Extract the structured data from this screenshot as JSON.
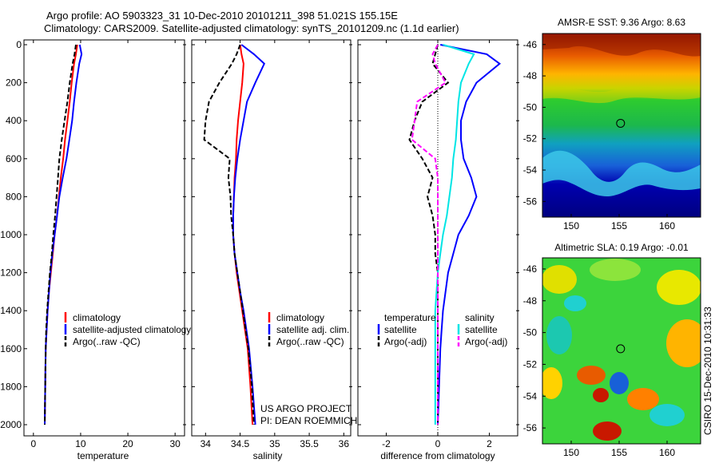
{
  "header": {
    "title_line1": "Argo profile: AO 5903323_31 10-Dec-2010 20101211_398 51.021S 155.15E",
    "title_line2": "Climatology: CARS2009. Satellite-adjusted climatology: synTS_20101209.nc (1.1d earlier)"
  },
  "watermark": "CSIRO 15-Dec-2010 10:31:33",
  "colors": {
    "climatology": "#ff0000",
    "satellite": "#0000ff",
    "argo": "#000000",
    "salinity_sat": "#00e5e5",
    "salinity_argo": "#ff00ff"
  },
  "panels": {
    "temperature": {
      "xlabel": "temperature",
      "xticks": [
        "0",
        "10",
        "20",
        "30"
      ],
      "legend": [
        "climatology",
        "satellite-adjusted climatology",
        "Argo(..raw -QC)"
      ]
    },
    "salinity": {
      "xlabel": "salinity",
      "xticks": [
        "34",
        "34.5",
        "35",
        "35.5",
        "36"
      ],
      "legend": [
        "climatology",
        "satellite adj. clim.",
        "Argo(..raw -QC)"
      ],
      "credit1": "US ARGO PROJECT",
      "credit2": "PI: DEAN ROEMMICH"
    },
    "difference": {
      "xlabel": "difference from climatology",
      "xticks": [
        "-2",
        "0",
        "2"
      ],
      "legend_t_title": "temperature",
      "legend_t": [
        "satellite",
        "Argo(-adj)"
      ],
      "legend_s_title": "salinity",
      "legend_s": [
        "satellite",
        "Argo(-adj)"
      ]
    },
    "depth_ticks": [
      "0",
      "200",
      "400",
      "600",
      "800",
      "1000",
      "1200",
      "1400",
      "1600",
      "1800",
      "2000"
    ]
  },
  "maps": {
    "sst": {
      "title": "AMSR-E SST: 9.36 Argo: 8.63",
      "yticks": [
        "-46",
        "-48",
        "-50",
        "-52",
        "-54",
        "-56"
      ],
      "xticks": [
        "150",
        "155",
        "160"
      ],
      "float_lon": 155.15,
      "float_lat": -51.02
    },
    "sla": {
      "title": "Altimetric SLA: 0.19 Argo: -0.01",
      "yticks": [
        "-46",
        "-48",
        "-50",
        "-52",
        "-54",
        "-56"
      ],
      "xticks": [
        "150",
        "155",
        "160"
      ],
      "float_lon": 155.15,
      "float_lat": -51.02
    }
  },
  "chart_data": [
    {
      "type": "line",
      "name": "temperature_profile",
      "xlabel": "temperature",
      "ylim": [
        2050,
        0
      ],
      "xlim": [
        -2,
        32
      ],
      "series": [
        {
          "name": "climatology",
          "x": [
            9.3,
            9.0,
            8.6,
            8.1,
            7.7,
            7.2,
            6.7,
            6.3,
            5.8,
            5.4,
            5.0,
            4.5,
            4.1,
            3.7,
            3.3,
            3.0,
            2.8,
            2.6,
            2.5,
            2.4
          ],
          "y": [
            0,
            50,
            100,
            200,
            300,
            400,
            500,
            600,
            700,
            800,
            900,
            1000,
            1100,
            1200,
            1300,
            1400,
            1500,
            1600,
            1800,
            2000
          ]
        },
        {
          "name": "satellite-adjusted climatology",
          "x": [
            9.8,
            10.2,
            9.7,
            9.1,
            8.6,
            8.2,
            7.6,
            7.0,
            6.2,
            5.5,
            5.0,
            4.5,
            4.0,
            3.6,
            3.3,
            3.0,
            2.8,
            2.6,
            2.5,
            2.4
          ],
          "y": [
            0,
            50,
            100,
            200,
            300,
            400,
            500,
            600,
            700,
            800,
            900,
            1000,
            1100,
            1200,
            1300,
            1400,
            1500,
            1600,
            1800,
            2000
          ]
        },
        {
          "name": "Argo(..raw -QC)",
          "x": [
            9.0,
            8.7,
            8.3,
            7.7,
            7.2,
            6.6,
            6.0,
            5.5,
            5.2,
            4.9,
            4.6,
            4.2,
            3.9,
            3.5,
            3.2,
            2.9,
            2.7,
            2.6,
            2.5,
            2.4
          ],
          "y": [
            0,
            50,
            100,
            200,
            300,
            400,
            500,
            600,
            700,
            800,
            900,
            1000,
            1100,
            1200,
            1300,
            1400,
            1500,
            1600,
            1800,
            2000
          ]
        }
      ]
    },
    {
      "type": "line",
      "name": "salinity_profile",
      "xlabel": "salinity",
      "ylim": [
        2050,
        0
      ],
      "xlim": [
        33.8,
        36.1
      ],
      "series": [
        {
          "name": "climatology",
          "x": [
            34.5,
            34.52,
            34.55,
            34.53,
            34.5,
            34.47,
            34.45,
            34.44,
            34.42,
            34.41,
            34.4,
            34.4,
            34.42,
            34.45,
            34.49,
            34.53,
            34.57,
            34.61,
            34.65,
            34.68
          ],
          "y": [
            0,
            50,
            100,
            200,
            300,
            400,
            500,
            600,
            700,
            800,
            900,
            1000,
            1100,
            1200,
            1300,
            1400,
            1500,
            1600,
            1800,
            2000
          ]
        },
        {
          "name": "satellite adj. clim.",
          "x": [
            34.52,
            34.7,
            34.85,
            34.72,
            34.6,
            34.55,
            34.5,
            34.46,
            34.43,
            34.41,
            34.4,
            34.4,
            34.42,
            34.46,
            34.5,
            34.55,
            34.59,
            34.63,
            34.68,
            34.72
          ],
          "y": [
            0,
            50,
            100,
            200,
            300,
            400,
            500,
            600,
            700,
            800,
            900,
            1000,
            1100,
            1200,
            1300,
            1400,
            1500,
            1600,
            1800,
            2000
          ]
        },
        {
          "name": "Argo(..raw -QC)",
          "x": [
            34.5,
            34.45,
            34.38,
            34.2,
            34.05,
            34.0,
            33.98,
            34.35,
            34.33,
            34.36,
            34.37,
            34.4,
            34.42,
            34.46,
            34.5,
            34.54,
            34.58,
            34.62,
            34.67,
            34.7
          ],
          "y": [
            0,
            50,
            100,
            200,
            300,
            400,
            500,
            600,
            700,
            800,
            900,
            1000,
            1100,
            1200,
            1300,
            1400,
            1500,
            1600,
            1800,
            2000
          ]
        }
      ]
    },
    {
      "type": "line",
      "name": "difference_profile",
      "xlabel": "difference from climatology",
      "ylim": [
        2050,
        0
      ],
      "xlim": [
        -3.1,
        3.1
      ],
      "series": [
        {
          "name": "temperature satellite",
          "x": [
            0.1,
            1.9,
            2.4,
            1.5,
            1.1,
            0.9,
            0.9,
            1.0,
            1.3,
            1.5,
            1.2,
            0.8,
            0.6,
            0.4,
            0.3,
            0.2,
            0.15,
            0.1,
            0.05,
            0.0
          ],
          "y": [
            0,
            50,
            100,
            200,
            300,
            400,
            500,
            600,
            700,
            800,
            900,
            1000,
            1100,
            1200,
            1300,
            1400,
            1500,
            1600,
            1800,
            2000
          ]
        },
        {
          "name": "temperature Argo(-adj)",
          "x": [
            0.0,
            -0.1,
            -0.2,
            0.4,
            -0.6,
            -0.9,
            -1.1,
            -0.6,
            -0.2,
            -0.4,
            -0.2,
            -0.1,
            -0.1,
            0.0,
            0.0,
            0.0,
            0.0,
            0.0,
            0.0,
            0.0
          ],
          "y": [
            0,
            50,
            100,
            200,
            300,
            400,
            500,
            600,
            700,
            800,
            900,
            1000,
            1100,
            1200,
            1300,
            1400,
            1500,
            1600,
            1800,
            2000
          ]
        },
        {
          "name": "salinity satellite",
          "x": [
            0.2,
            1.4,
            1.2,
            0.9,
            0.8,
            0.75,
            0.7,
            0.6,
            0.55,
            0.45,
            0.35,
            0.2,
            0.1,
            0.0,
            -0.05,
            -0.1,
            -0.1,
            -0.1,
            -0.1,
            -0.1
          ],
          "y": [
            0,
            50,
            100,
            200,
            300,
            400,
            500,
            600,
            700,
            800,
            900,
            1000,
            1100,
            1200,
            1300,
            1400,
            1500,
            1600,
            1800,
            2000
          ]
        },
        {
          "name": "salinity Argo(-adj)",
          "x": [
            0.0,
            -0.2,
            -0.1,
            0.3,
            -0.8,
            -0.9,
            -1.0,
            -0.1,
            0.0,
            0.0,
            0.0,
            0.0,
            0.0,
            0.0,
            0.0,
            0.0,
            0.0,
            0.0,
            0.0,
            0.0
          ],
          "y": [
            0,
            50,
            100,
            200,
            300,
            400,
            500,
            600,
            700,
            800,
            900,
            1000,
            1100,
            1200,
            1300,
            1400,
            1500,
            1600,
            1800,
            2000
          ]
        }
      ]
    }
  ]
}
